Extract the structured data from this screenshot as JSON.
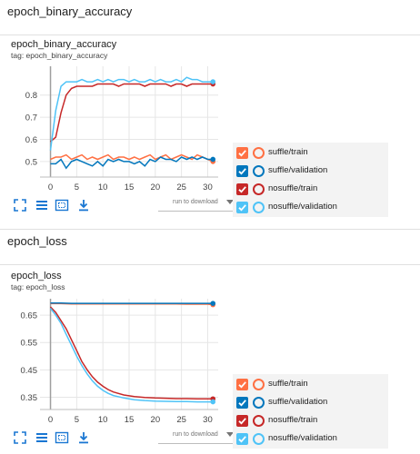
{
  "sections": [
    {
      "header": "epoch_binary_accuracy",
      "card_title": "epoch_binary_accuracy",
      "card_tag": "tag: epoch_binary_accuracy",
      "toolbar": {
        "run_to_download": "run to download"
      },
      "chart_data": {
        "type": "line",
        "xlim": [
          -2,
          32
        ],
        "ylim": [
          0.43,
          0.93
        ],
        "xticks": [
          0,
          5,
          10,
          15,
          20,
          25,
          30
        ],
        "yticks": [
          0.5,
          0.6,
          0.7,
          0.8
        ],
        "ytick_labels": [
          "0.5",
          "0.6",
          "0.7",
          "0.8"
        ],
        "grid": true,
        "series": [
          {
            "name": "suffle/train",
            "color": "#ff7043",
            "x": [
              0,
              1,
              2,
              3,
              4,
              5,
              6,
              7,
              8,
              9,
              10,
              11,
              12,
              13,
              14,
              15,
              16,
              17,
              18,
              19,
              20,
              21,
              22,
              23,
              24,
              25,
              26,
              27,
              28,
              29,
              30,
              31
            ],
            "y": [
              0.51,
              0.52,
              0.52,
              0.53,
              0.51,
              0.52,
              0.53,
              0.51,
              0.52,
              0.51,
              0.52,
              0.53,
              0.51,
              0.52,
              0.52,
              0.51,
              0.52,
              0.51,
              0.52,
              0.53,
              0.51,
              0.52,
              0.53,
              0.51,
              0.52,
              0.53,
              0.52,
              0.51,
              0.53,
              0.52,
              0.51,
              0.5
            ]
          },
          {
            "name": "suffle/validation",
            "color": "#0277bd",
            "x": [
              0,
              1,
              2,
              3,
              4,
              5,
              6,
              7,
              8,
              9,
              10,
              11,
              12,
              13,
              14,
              15,
              16,
              17,
              18,
              19,
              20,
              21,
              22,
              23,
              24,
              25,
              26,
              27,
              28,
              29,
              30,
              31
            ],
            "y": [
              0.49,
              0.49,
              0.51,
              0.47,
              0.5,
              0.51,
              0.5,
              0.49,
              0.48,
              0.5,
              0.48,
              0.51,
              0.5,
              0.51,
              0.5,
              0.5,
              0.49,
              0.5,
              0.48,
              0.51,
              0.5,
              0.52,
              0.51,
              0.51,
              0.5,
              0.52,
              0.51,
              0.52,
              0.51,
              0.52,
              0.51,
              0.51
            ]
          },
          {
            "name": "nosuffle/train",
            "color": "#c62828",
            "x": [
              0,
              1,
              2,
              3,
              4,
              5,
              6,
              7,
              8,
              9,
              10,
              11,
              12,
              13,
              14,
              15,
              16,
              17,
              18,
              19,
              20,
              21,
              22,
              23,
              24,
              25,
              26,
              27,
              28,
              29,
              30,
              31
            ],
            "y": [
              0.59,
              0.61,
              0.72,
              0.8,
              0.83,
              0.84,
              0.84,
              0.84,
              0.84,
              0.85,
              0.85,
              0.85,
              0.85,
              0.84,
              0.85,
              0.85,
              0.85,
              0.85,
              0.84,
              0.85,
              0.85,
              0.85,
              0.85,
              0.84,
              0.85,
              0.85,
              0.84,
              0.85,
              0.85,
              0.85,
              0.85,
              0.85
            ]
          },
          {
            "name": "nosuffle/validation",
            "color": "#4fc3f7",
            "x": [
              0,
              1,
              2,
              3,
              4,
              5,
              6,
              7,
              8,
              9,
              10,
              11,
              12,
              13,
              14,
              15,
              16,
              17,
              18,
              19,
              20,
              21,
              22,
              23,
              24,
              25,
              26,
              27,
              28,
              29,
              30,
              31
            ],
            "y": [
              0.55,
              0.73,
              0.84,
              0.86,
              0.86,
              0.86,
              0.87,
              0.86,
              0.86,
              0.87,
              0.86,
              0.87,
              0.86,
              0.87,
              0.87,
              0.86,
              0.87,
              0.86,
              0.86,
              0.87,
              0.86,
              0.87,
              0.86,
              0.86,
              0.87,
              0.86,
              0.88,
              0.87,
              0.87,
              0.86,
              0.86,
              0.86
            ]
          }
        ]
      }
    },
    {
      "header": "epoch_loss",
      "card_title": "epoch_loss",
      "card_tag": "tag: epoch_loss",
      "toolbar": {
        "run_to_download": "run to download"
      },
      "chart_data": {
        "type": "line",
        "xlim": [
          -2,
          32
        ],
        "ylim": [
          0.305,
          0.71
        ],
        "xticks": [
          0,
          5,
          10,
          15,
          20,
          25,
          30
        ],
        "yticks": [
          0.35,
          0.45,
          0.55,
          0.65
        ],
        "ytick_labels": [
          "0.35",
          "0.45",
          "0.55",
          "0.65"
        ],
        "grid": true,
        "series": [
          {
            "name": "suffle/train",
            "color": "#ff7043",
            "x": [
              0,
              2,
              4,
              6,
              8,
              10,
              12,
              14,
              16,
              18,
              20,
              22,
              24,
              26,
              28,
              30,
              31
            ],
            "y": [
              0.692,
              0.692,
              0.691,
              0.691,
              0.691,
              0.691,
              0.691,
              0.691,
              0.691,
              0.691,
              0.691,
              0.691,
              0.691,
              0.69,
              0.69,
              0.69,
              0.688
            ]
          },
          {
            "name": "suffle/validation",
            "color": "#0277bd",
            "x": [
              0,
              2,
              4,
              6,
              8,
              10,
              12,
              14,
              16,
              18,
              20,
              22,
              24,
              26,
              28,
              30,
              31
            ],
            "y": [
              0.694,
              0.694,
              0.693,
              0.693,
              0.693,
              0.693,
              0.693,
              0.693,
              0.693,
              0.693,
              0.693,
              0.693,
              0.693,
              0.693,
              0.693,
              0.693,
              0.693
            ]
          },
          {
            "name": "nosuffle/train",
            "color": "#c62828",
            "x": [
              0,
              1,
              2,
              3,
              4,
              5,
              6,
              7,
              8,
              9,
              10,
              11,
              12,
              14,
              16,
              18,
              20,
              22,
              24,
              26,
              28,
              30,
              31
            ],
            "y": [
              0.68,
              0.66,
              0.63,
              0.6,
              0.56,
              0.52,
              0.48,
              0.45,
              0.425,
              0.405,
              0.39,
              0.378,
              0.369,
              0.358,
              0.352,
              0.349,
              0.347,
              0.346,
              0.345,
              0.345,
              0.344,
              0.344,
              0.344
            ]
          },
          {
            "name": "nosuffle/validation",
            "color": "#4fc3f7",
            "x": [
              0,
              1,
              2,
              3,
              4,
              5,
              6,
              7,
              8,
              9,
              10,
              11,
              12,
              14,
              16,
              18,
              20,
              22,
              24,
              26,
              28,
              30,
              31
            ],
            "y": [
              0.675,
              0.65,
              0.62,
              0.58,
              0.54,
              0.5,
              0.465,
              0.435,
              0.41,
              0.39,
              0.375,
              0.364,
              0.356,
              0.347,
              0.341,
              0.338,
              0.336,
              0.335,
              0.334,
              0.334,
              0.333,
              0.333,
              0.333
            ]
          }
        ]
      }
    }
  ],
  "icons": {
    "fullscreen": "fullscreen-icon",
    "toggle_y_log": "toggle-log-scale-icon",
    "fit_domain": "fit-domain-icon",
    "download": "download-icon"
  }
}
